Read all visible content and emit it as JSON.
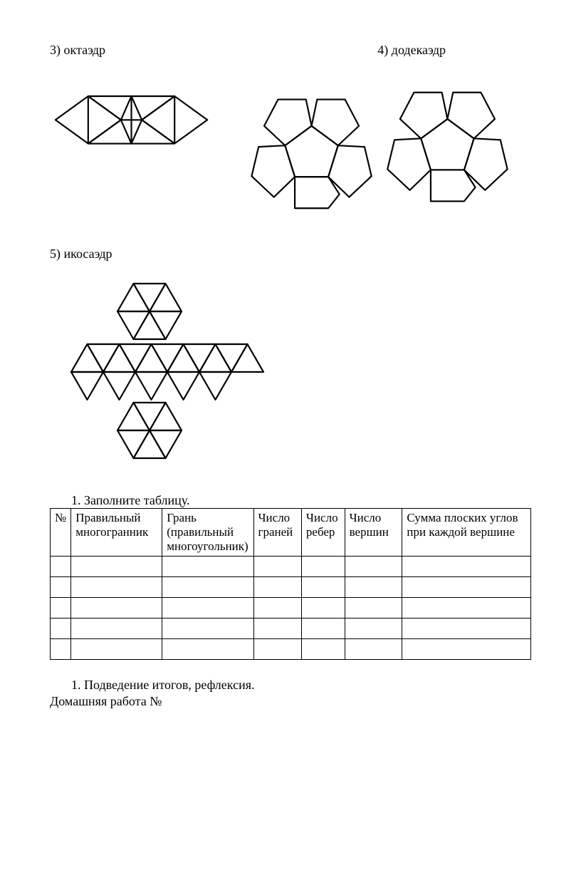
{
  "labels": {
    "octa": "3) октаэдр",
    "dodeca": "4) додекаэдр",
    "icosa": "5) икосаэдр"
  },
  "task1": "1.  Заполните таблицу.",
  "table": {
    "columns": [
      "№",
      "Правильный многогранник",
      "Грань (правильный многоугольник)",
      "Число граней",
      "Число ребер",
      "Число вершин",
      "Сумма плоских углов при каждой вершине"
    ],
    "empty_rows": 5,
    "col_widths": [
      "4%",
      "19%",
      "19%",
      "10%",
      "9%",
      "12%",
      "27%"
    ]
  },
  "footer_task": "1.  Подведение итогов, рефлексия.",
  "footer_home": "Домашняя работа №",
  "diagrams": {
    "stroke": "#000000",
    "stroke_width": 2,
    "fill": "none",
    "background": "#ffffff"
  }
}
